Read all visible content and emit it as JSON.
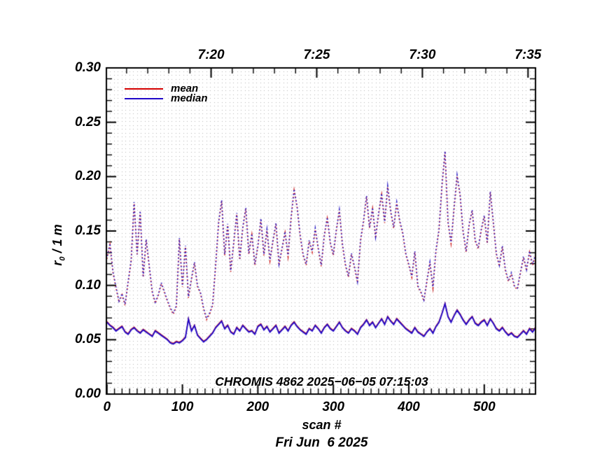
{
  "figure": {
    "background": "#ffffff",
    "frame_color": "#000000",
    "grid_dot_color": "#b6b6b6",
    "annotation": "CHROMIS 4862 2025−06−05 07:15:03",
    "footer_date": "Fri Jun  6 2025",
    "xlabel": "scan #",
    "ylabel": {
      "base": "r",
      "sub": "0",
      "rest": " / 1 m"
    },
    "legend": [
      {
        "label": "mean",
        "color": "#d40000"
      },
      {
        "label": "median",
        "color": "#2008c8"
      }
    ]
  },
  "chart_data": {
    "type": "line",
    "title": "CHROMIS 4862 2025−06−05 07:15:03",
    "xlabel": "scan #",
    "ylabel": "r0 / 1 m",
    "xlim": [
      0,
      568
    ],
    "ylim": [
      0.0,
      0.3
    ],
    "grid": "fine-dotted",
    "legend_position": "top-left-inside",
    "x_tick_labels": [
      "0",
      "100",
      "200",
      "300",
      "400",
      "500"
    ],
    "x_tick_values": [
      0,
      100,
      200,
      300,
      400,
      500
    ],
    "x_minor_step": 10,
    "y_tick_labels": [
      "0.00",
      "0.05",
      "0.10",
      "0.15",
      "0.20",
      "0.25",
      "0.30"
    ],
    "y_tick_values": [
      0,
      0.05,
      0.1,
      0.15,
      0.2,
      0.25,
      0.3
    ],
    "y_minor_step": 0.01,
    "top_axis": {
      "labels": [
        "7:20",
        "7:25",
        "7:30",
        "7:35"
      ],
      "scan_positions": [
        138,
        278,
        418,
        558
      ],
      "minor_step_scans": 28,
      "first_minor_scan": 26
    },
    "x_step": 4,
    "series": [
      {
        "name": "mean",
        "style": "dotted",
        "color": "#cc1111",
        "overlay_color": "#2012c4",
        "values": [
          0.125,
          0.138,
          0.112,
          0.098,
          0.085,
          0.092,
          0.082,
          0.103,
          0.122,
          0.176,
          0.128,
          0.168,
          0.108,
          0.142,
          0.118,
          0.094,
          0.084,
          0.091,
          0.102,
          0.094,
          0.086,
          0.079,
          0.074,
          0.081,
          0.143,
          0.099,
          0.136,
          0.089,
          0.106,
          0.121,
          0.099,
          0.093,
          0.079,
          0.069,
          0.074,
          0.082,
          0.118,
          0.158,
          0.178,
          0.128,
          0.156,
          0.113,
          0.139,
          0.166,
          0.124,
          0.153,
          0.171,
          0.129,
          0.147,
          0.119,
          0.136,
          0.161,
          0.128,
          0.151,
          0.123,
          0.141,
          0.157,
          0.119,
          0.134,
          0.149,
          0.127,
          0.162,
          0.188,
          0.172,
          0.146,
          0.128,
          0.119,
          0.141,
          0.131,
          0.152,
          0.134,
          0.118,
          0.146,
          0.162,
          0.139,
          0.128,
          0.151,
          0.169,
          0.138,
          0.119,
          0.108,
          0.129,
          0.117,
          0.103,
          0.141,
          0.159,
          0.182,
          0.153,
          0.171,
          0.144,
          0.166,
          0.184,
          0.158,
          0.191,
          0.168,
          0.153,
          0.176,
          0.159,
          0.148,
          0.129,
          0.119,
          0.108,
          0.131,
          0.099,
          0.094,
          0.086,
          0.104,
          0.121,
          0.098,
          0.132,
          0.151,
          0.192,
          0.223,
          0.158,
          0.139,
          0.171,
          0.201,
          0.183,
          0.149,
          0.131,
          0.156,
          0.169,
          0.141,
          0.134,
          0.151,
          0.164,
          0.139,
          0.186,
          0.158,
          0.129,
          0.118,
          0.136,
          0.114,
          0.104,
          0.111,
          0.099,
          0.097,
          0.112,
          0.126,
          0.114,
          0.131,
          0.119,
          0.128
        ]
      },
      {
        "name": "median",
        "style": "solid",
        "color": "#2008c8",
        "underlay_color": "#cc1111",
        "values": [
          0.066,
          0.063,
          0.061,
          0.058,
          0.06,
          0.062,
          0.057,
          0.055,
          0.059,
          0.061,
          0.058,
          0.056,
          0.059,
          0.057,
          0.055,
          0.053,
          0.058,
          0.056,
          0.054,
          0.052,
          0.05,
          0.047,
          0.046,
          0.048,
          0.047,
          0.049,
          0.052,
          0.069,
          0.058,
          0.063,
          0.054,
          0.051,
          0.048,
          0.05,
          0.053,
          0.056,
          0.061,
          0.064,
          0.067,
          0.06,
          0.063,
          0.057,
          0.055,
          0.061,
          0.058,
          0.063,
          0.06,
          0.057,
          0.058,
          0.055,
          0.062,
          0.064,
          0.059,
          0.062,
          0.057,
          0.06,
          0.063,
          0.056,
          0.059,
          0.062,
          0.058,
          0.063,
          0.066,
          0.062,
          0.059,
          0.057,
          0.055,
          0.06,
          0.058,
          0.063,
          0.06,
          0.056,
          0.061,
          0.064,
          0.06,
          0.058,
          0.062,
          0.066,
          0.061,
          0.058,
          0.056,
          0.06,
          0.058,
          0.055,
          0.061,
          0.064,
          0.068,
          0.063,
          0.066,
          0.061,
          0.065,
          0.069,
          0.064,
          0.071,
          0.067,
          0.064,
          0.069,
          0.066,
          0.063,
          0.06,
          0.058,
          0.056,
          0.061,
          0.057,
          0.055,
          0.053,
          0.057,
          0.06,
          0.056,
          0.062,
          0.066,
          0.074,
          0.083,
          0.071,
          0.066,
          0.072,
          0.077,
          0.073,
          0.068,
          0.064,
          0.068,
          0.071,
          0.065,
          0.063,
          0.066,
          0.068,
          0.063,
          0.069,
          0.065,
          0.06,
          0.058,
          0.061,
          0.057,
          0.054,
          0.056,
          0.053,
          0.052,
          0.055,
          0.058,
          0.055,
          0.06,
          0.057,
          0.061
        ]
      }
    ]
  }
}
